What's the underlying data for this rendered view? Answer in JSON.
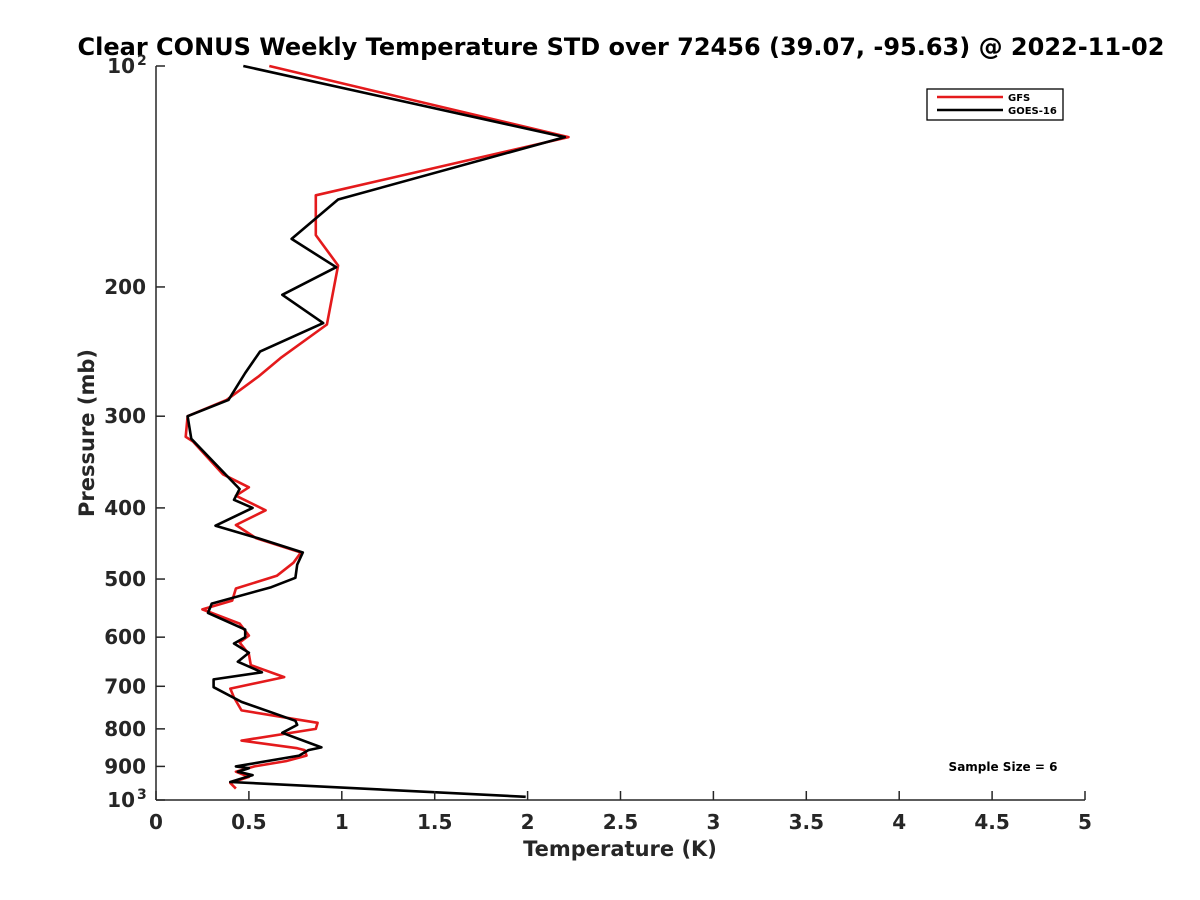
{
  "chart_data": {
    "type": "line",
    "title": "Clear CONUS Weekly Temperature STD over 72456 (39.07, -95.63) @ 2022-11-02",
    "xlabel": "Temperature (K)",
    "ylabel": "Pressure (mb)",
    "xlim": [
      0,
      5
    ],
    "ylim": [
      100,
      1000
    ],
    "y_scale": "log",
    "y_reversed": true,
    "grid": false,
    "legend_position": "top-right",
    "x_ticks": [
      {
        "value": 0,
        "label": "0"
      },
      {
        "value": 0.5,
        "label": "0.5"
      },
      {
        "value": 1,
        "label": "1"
      },
      {
        "value": 1.5,
        "label": "1.5"
      },
      {
        "value": 2,
        "label": "2"
      },
      {
        "value": 2.5,
        "label": "2.5"
      },
      {
        "value": 3,
        "label": "3"
      },
      {
        "value": 3.5,
        "label": "3.5"
      },
      {
        "value": 4,
        "label": "4"
      },
      {
        "value": 4.5,
        "label": "4.5"
      },
      {
        "value": 5,
        "label": "5"
      }
    ],
    "y_ticks": [
      {
        "value": 100,
        "label": "10",
        "sup": "2"
      },
      {
        "value": 200,
        "label": "200",
        "sup": ""
      },
      {
        "value": 300,
        "label": "300",
        "sup": ""
      },
      {
        "value": 400,
        "label": "400",
        "sup": ""
      },
      {
        "value": 500,
        "label": "500",
        "sup": ""
      },
      {
        "value": 600,
        "label": "600",
        "sup": ""
      },
      {
        "value": 700,
        "label": "700",
        "sup": ""
      },
      {
        "value": 800,
        "label": "800",
        "sup": ""
      },
      {
        "value": 900,
        "label": "900",
        "sup": ""
      },
      {
        "value": 1000,
        "label": "10",
        "sup": "3"
      }
    ],
    "series": [
      {
        "name": "GFS",
        "color": "#e41a1c",
        "points": [
          [
            0.61,
            100
          ],
          [
            2.22,
            125
          ],
          [
            0.86,
            150
          ],
          [
            0.86,
            170
          ],
          [
            0.98,
            187
          ],
          [
            0.92,
            225
          ],
          [
            0.67,
            250
          ],
          [
            0.55,
            265
          ],
          [
            0.38,
            285
          ],
          [
            0.17,
            300
          ],
          [
            0.16,
            320
          ],
          [
            0.2,
            325
          ],
          [
            0.36,
            360
          ],
          [
            0.5,
            375
          ],
          [
            0.43,
            385
          ],
          [
            0.59,
            403
          ],
          [
            0.43,
            422
          ],
          [
            0.54,
            440
          ],
          [
            0.78,
            460
          ],
          [
            0.74,
            475
          ],
          [
            0.65,
            495
          ],
          [
            0.43,
            515
          ],
          [
            0.41,
            535
          ],
          [
            0.25,
            550
          ],
          [
            0.45,
            575
          ],
          [
            0.5,
            597
          ],
          [
            0.45,
            610
          ],
          [
            0.5,
            633
          ],
          [
            0.51,
            655
          ],
          [
            0.69,
            680
          ],
          [
            0.4,
            705
          ],
          [
            0.42,
            725
          ],
          [
            0.46,
            755
          ],
          [
            0.87,
            785
          ],
          [
            0.86,
            800
          ],
          [
            0.46,
            830
          ],
          [
            0.76,
            850
          ],
          [
            0.8,
            855
          ],
          [
            0.81,
            870
          ],
          [
            0.7,
            885
          ],
          [
            0.53,
            900
          ],
          [
            0.43,
            915
          ],
          [
            0.5,
            930
          ],
          [
            0.4,
            948
          ],
          [
            0.43,
            965
          ]
        ]
      },
      {
        "name": "GOES-16",
        "color": "#000000",
        "points": [
          [
            0.47,
            100
          ],
          [
            2.2,
            125
          ],
          [
            0.98,
            152
          ],
          [
            0.73,
            172
          ],
          [
            0.97,
            188
          ],
          [
            0.68,
            205
          ],
          [
            0.9,
            224
          ],
          [
            0.56,
            245
          ],
          [
            0.48,
            262
          ],
          [
            0.39,
            285
          ],
          [
            0.17,
            300
          ],
          [
            0.19,
            322
          ],
          [
            0.36,
            357
          ],
          [
            0.45,
            377
          ],
          [
            0.42,
            390
          ],
          [
            0.52,
            400
          ],
          [
            0.32,
            423
          ],
          [
            0.55,
            440
          ],
          [
            0.79,
            460
          ],
          [
            0.76,
            478
          ],
          [
            0.75,
            498
          ],
          [
            0.62,
            513
          ],
          [
            0.3,
            540
          ],
          [
            0.28,
            556
          ],
          [
            0.48,
            586
          ],
          [
            0.48,
            600
          ],
          [
            0.42,
            612
          ],
          [
            0.5,
            630
          ],
          [
            0.44,
            648
          ],
          [
            0.57,
            670
          ],
          [
            0.31,
            685
          ],
          [
            0.31,
            702
          ],
          [
            0.46,
            735
          ],
          [
            0.75,
            780
          ],
          [
            0.76,
            790
          ],
          [
            0.68,
            810
          ],
          [
            0.89,
            848
          ],
          [
            0.82,
            855
          ],
          [
            0.77,
            870
          ],
          [
            0.43,
            900
          ],
          [
            0.5,
            905
          ],
          [
            0.44,
            915
          ],
          [
            0.52,
            925
          ],
          [
            0.4,
            945
          ],
          [
            1.99,
            990
          ]
        ]
      }
    ],
    "annotations": [
      {
        "text": "Sample Size = 6",
        "position": "bottom-right"
      }
    ]
  }
}
